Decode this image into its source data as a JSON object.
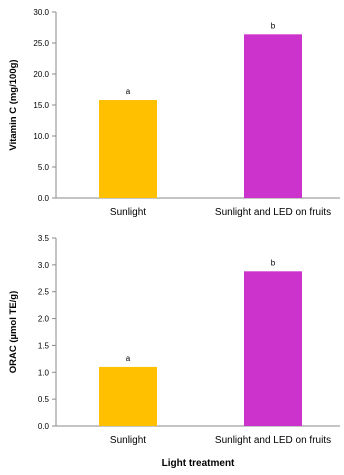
{
  "chart_data": [
    {
      "type": "bar",
      "categories": [
        "Sunlight",
        "Sunlight and LED on fruits"
      ],
      "values": [
        15.8,
        26.4
      ],
      "significance": [
        "a",
        "b"
      ],
      "colors": [
        "#FFC000",
        "#CC33CC"
      ],
      "ylabel": "Vitamin C (mg/100g)",
      "xlabel": "",
      "ylim": [
        0,
        30
      ],
      "yticks": [
        "0.0",
        "5.0",
        "10.0",
        "15.0",
        "20.0",
        "25.0",
        "30.0"
      ],
      "grid": false
    },
    {
      "type": "bar",
      "categories": [
        "Sunlight",
        "Sunlight and LED on fruits"
      ],
      "values": [
        1.1,
        2.88
      ],
      "significance": [
        "a",
        "b"
      ],
      "colors": [
        "#FFC000",
        "#CC33CC"
      ],
      "ylabel": "ORAC (µmol TE/g)",
      "xlabel": "Light treatment",
      "ylim": [
        0,
        3.5
      ],
      "yticks": [
        "0.0",
        "0.5",
        "1.0",
        "1.5",
        "2.0",
        "2.5",
        "3.0",
        "3.5"
      ],
      "grid": false
    }
  ]
}
